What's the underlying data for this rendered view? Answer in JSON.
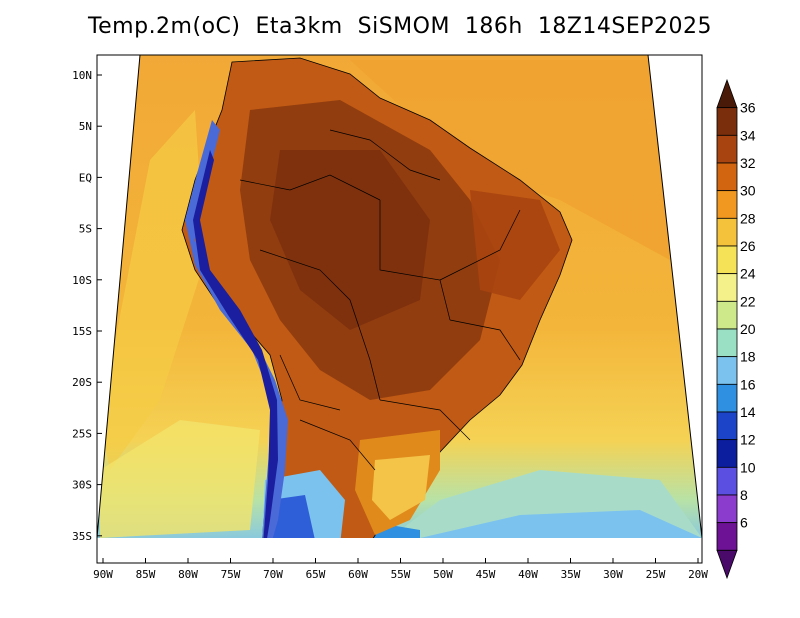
{
  "title": "Temp.2m(oC)  Eta3km  SiSMOM  186h  18Z14SEP2025",
  "map": {
    "variable": "2 m air temperature",
    "unit": "oC",
    "region": "South America",
    "lon_labels": [
      "90W",
      "85W",
      "80W",
      "75W",
      "70W",
      "65W",
      "60W",
      "55W",
      "50W",
      "45W",
      "40W",
      "35W",
      "30W",
      "25W",
      "20W"
    ],
    "lat_labels": [
      "10N",
      "5N",
      "EQ",
      "5S",
      "10S",
      "15S",
      "20S",
      "25S",
      "30S",
      "35S"
    ]
  },
  "colorbar": {
    "labels": [
      "36",
      "34",
      "32",
      "30",
      "28",
      "26",
      "24",
      "22",
      "20",
      "18",
      "16",
      "14",
      "12",
      "10",
      "8",
      "6"
    ],
    "colors": [
      "#4a1a08",
      "#7a2e0c",
      "#a8440f",
      "#d2650f",
      "#f0981f",
      "#f5c33b",
      "#f5e257",
      "#f4f18a",
      "#cde98a",
      "#9ae0c4",
      "#7cc2ee",
      "#2f8fe0",
      "#1b44c8",
      "#0c1e9e",
      "#5b4fe2",
      "#8c3ccc",
      "#6d1294",
      "#4a0a6a"
    ]
  }
}
